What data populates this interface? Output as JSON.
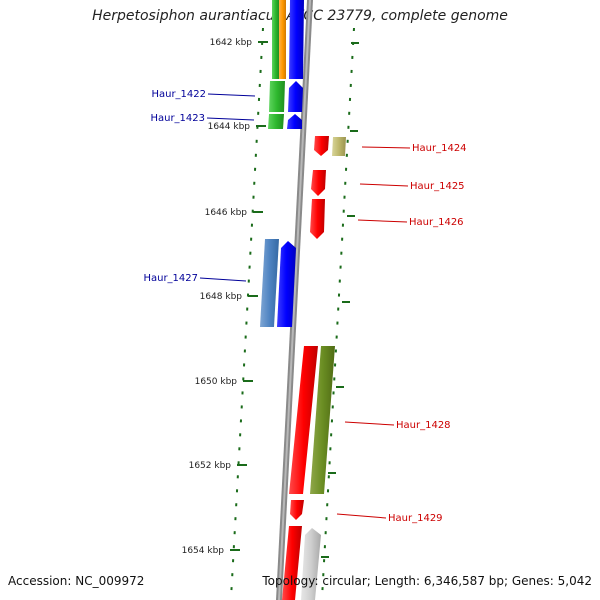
{
  "title": "Herpetosiphon aurantiacus ATCC 23779, complete genome",
  "footer": {
    "accession": "Accession: NC_009972",
    "topology": "Topology: circular; Length: 6,346,587 bp; Genes: 5,042"
  },
  "ticks": [
    {
      "label": "1642 kbp"
    },
    {
      "label": "1644 kbp"
    },
    {
      "label": "1646 kbp"
    },
    {
      "label": "1648 kbp"
    },
    {
      "label": "1650 kbp"
    },
    {
      "label": "1652 kbp"
    },
    {
      "label": "1654 kbp"
    }
  ],
  "left_labels": [
    {
      "label": "Haur_1422"
    },
    {
      "label": "Haur_1423"
    },
    {
      "label": "Haur_1427"
    }
  ],
  "right_labels": [
    {
      "label": "Haur_1424"
    },
    {
      "label": "Haur_1425"
    },
    {
      "label": "Haur_1426"
    },
    {
      "label": "Haur_1428"
    },
    {
      "label": "Haur_1429"
    }
  ],
  "colors": {
    "label_left": "#000099",
    "label_right": "#cc0000",
    "tick": "#1a6b1a",
    "axis": "#8a8a8a"
  }
}
